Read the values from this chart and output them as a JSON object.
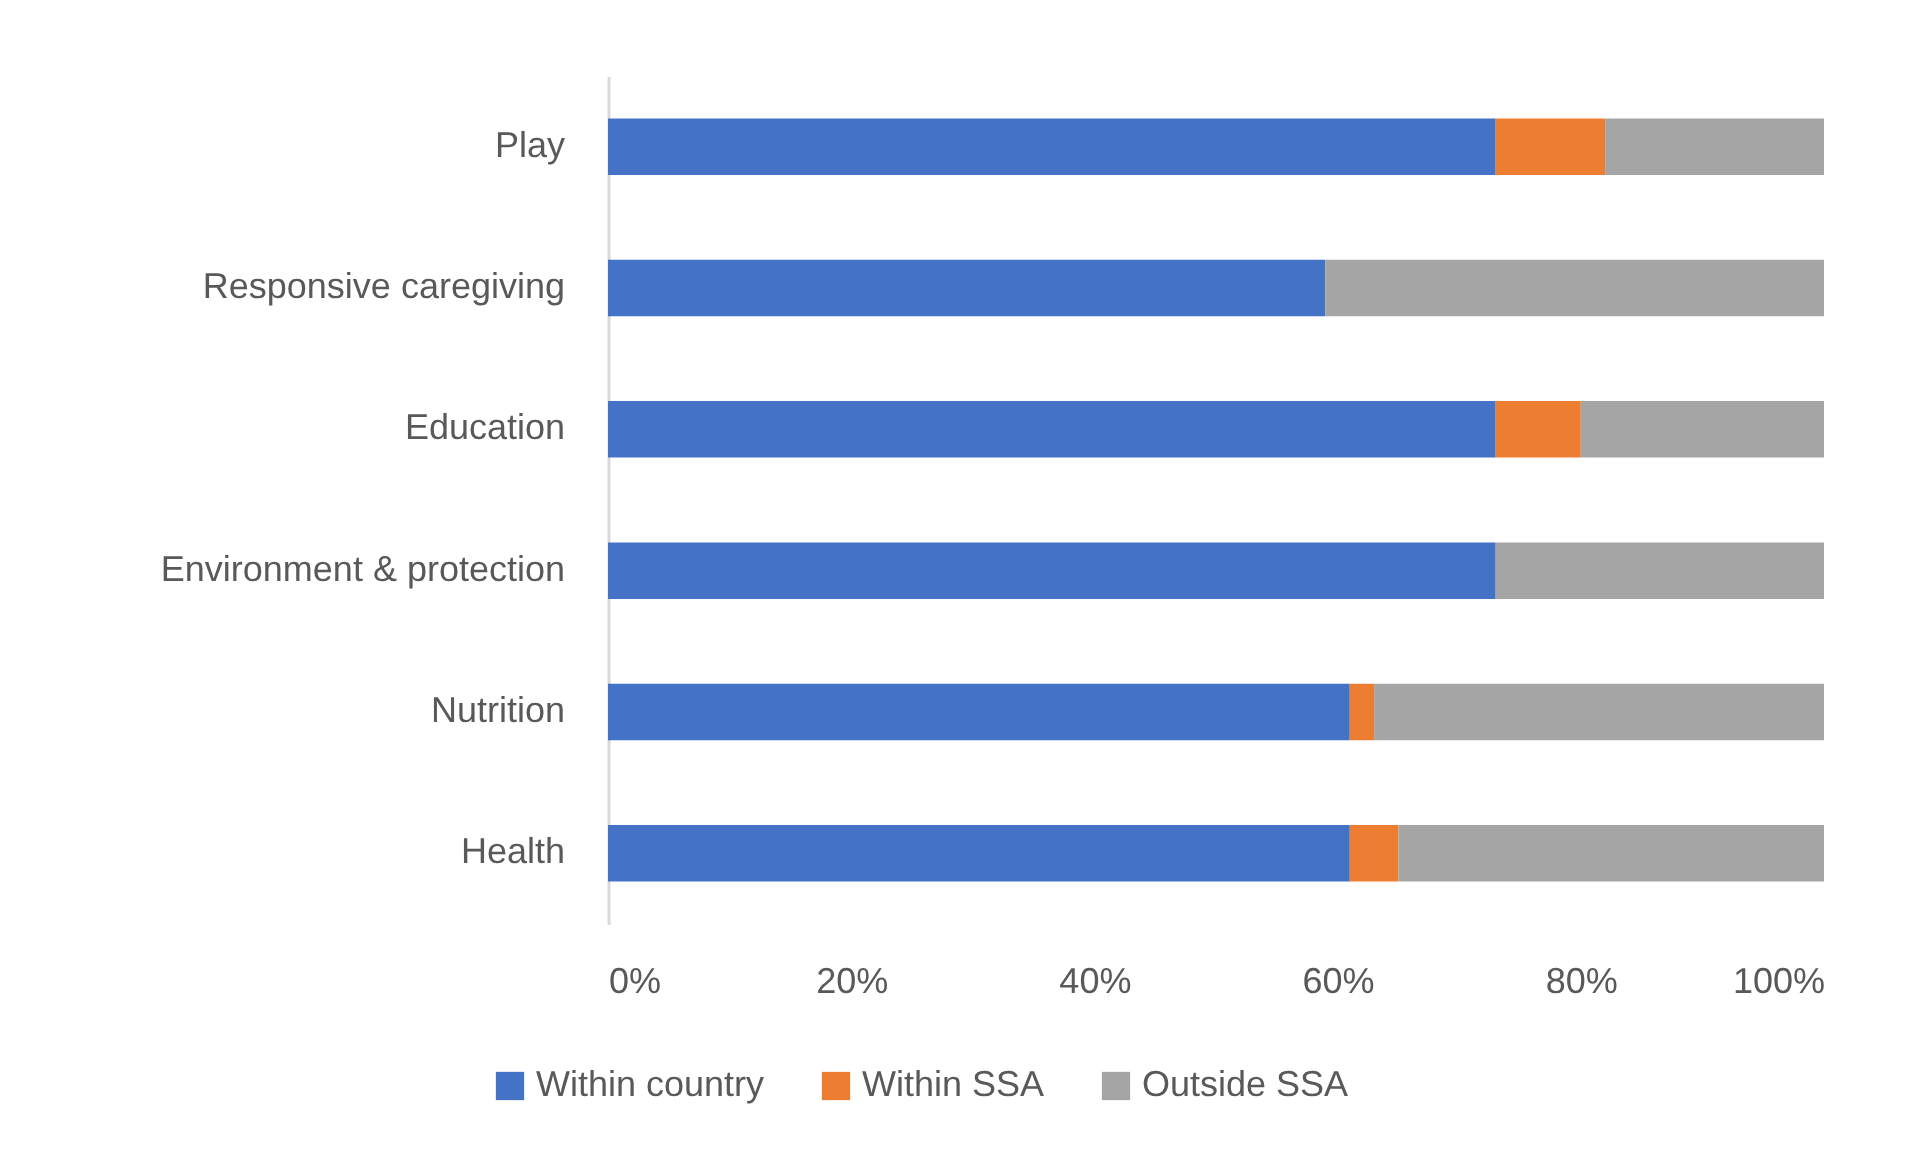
{
  "chart_data": {
    "type": "bar",
    "orientation": "horizontal",
    "stacked": true,
    "categories": [
      "Play",
      "Responsive caregiving",
      "Education",
      "Environment & protection",
      "Nutrition",
      "Health"
    ],
    "series": [
      {
        "name": "Within country",
        "color": "#4472c4",
        "values": [
          73,
          59,
          73,
          73,
          61,
          61
        ]
      },
      {
        "name": "Within SSA",
        "color": "#ed7d31",
        "values": [
          9,
          0,
          7,
          0,
          2,
          4
        ]
      },
      {
        "name": "Outside SSA",
        "color": "#a5a5a5",
        "values": [
          18,
          41,
          20,
          27,
          37,
          35
        ]
      }
    ],
    "xlim": [
      0,
      100
    ],
    "xticks": [
      {
        "value": 0,
        "label": "0%"
      },
      {
        "value": 20,
        "label": "20%"
      },
      {
        "value": 40,
        "label": "40%"
      },
      {
        "value": 60,
        "label": "60%"
      },
      {
        "value": 80,
        "label": "80%"
      },
      {
        "value": 100,
        "label": "100%"
      }
    ],
    "grid": false,
    "legend": "bottom"
  }
}
